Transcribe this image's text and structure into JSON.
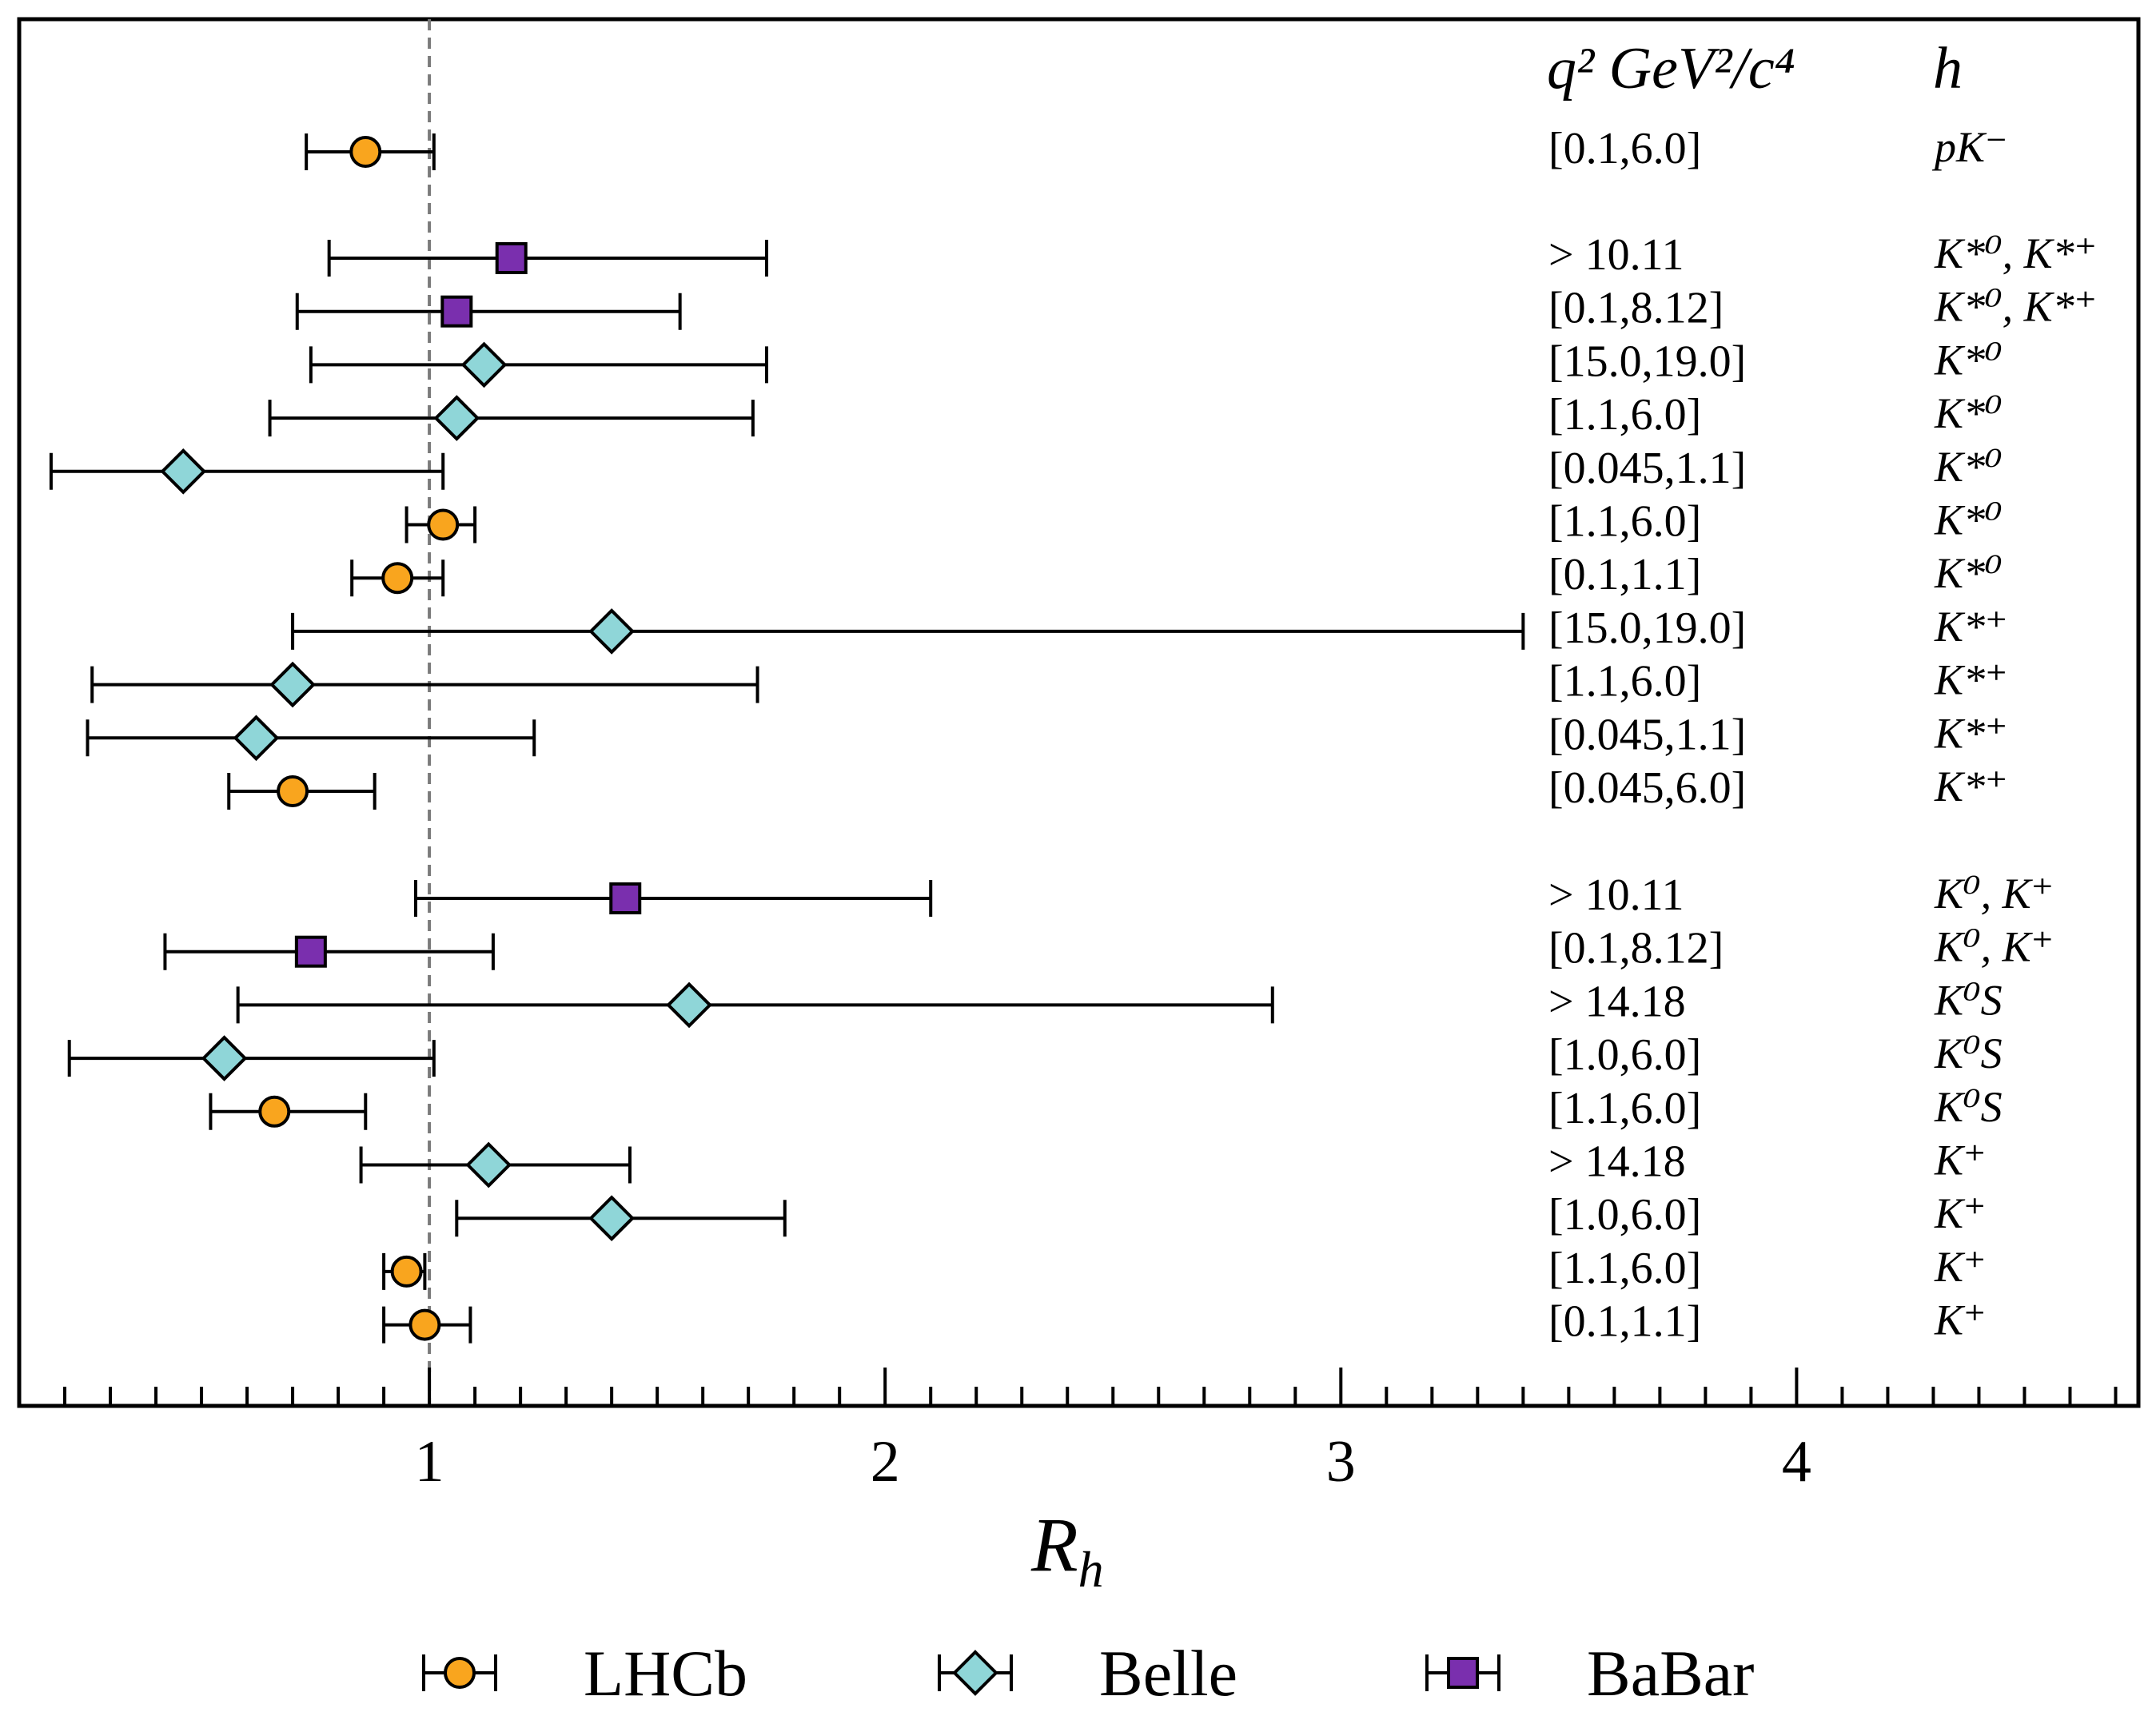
{
  "chart_data": {
    "type": "scatter",
    "title": "",
    "xlabel_main": "R",
    "xlabel_sub": "h",
    "ylabel": "",
    "xlim": [
      0.1,
      4.75
    ],
    "xticks": [
      1,
      2,
      3,
      4
    ],
    "xtick_labels": [
      "1",
      "2",
      "3",
      "4"
    ],
    "minor_tick_step": 0.1,
    "reference_line": 1.0,
    "grid": false,
    "legend_position": "bottom",
    "header": {
      "q2_label": "q² GeV²/c⁴",
      "h_label": "h"
    },
    "series_styles": {
      "LHCb": {
        "marker": "circle",
        "color": "#f9a51e"
      },
      "Belle": {
        "marker": "diamond",
        "color": "#8fd6d8"
      },
      "BaBar": {
        "marker": "square",
        "color": "#7a2fae"
      }
    },
    "legend": [
      "LHCb",
      "Belle",
      "BaBar"
    ],
    "rows": [
      {
        "experiment": "LHCb",
        "value": 0.86,
        "low": 0.73,
        "high": 1.01,
        "q2": "[0.1,6.0]",
        "h": "pK⁻"
      },
      {
        "experiment": "BaBar",
        "value": 1.18,
        "low": 0.78,
        "high": 1.74,
        "q2": "> 10.11",
        "h": "K*⁰, K*⁺"
      },
      {
        "experiment": "BaBar",
        "value": 1.06,
        "low": 0.71,
        "high": 1.55,
        "q2": "[0.1,8.12]",
        "h": "K*⁰, K*⁺"
      },
      {
        "experiment": "Belle",
        "value": 1.12,
        "low": 0.74,
        "high": 1.74,
        "q2": "[15.0,19.0]",
        "h": "K*⁰"
      },
      {
        "experiment": "Belle",
        "value": 1.06,
        "low": 0.65,
        "high": 1.71,
        "q2": "[1.1,6.0]",
        "h": "K*⁰"
      },
      {
        "experiment": "Belle",
        "value": 0.46,
        "low": 0.17,
        "high": 1.03,
        "q2": "[0.045,1.1]",
        "h": "K*⁰"
      },
      {
        "experiment": "LHCb",
        "value": 1.03,
        "low": 0.95,
        "high": 1.1,
        "q2": "[1.1,6.0]",
        "h": "K*⁰"
      },
      {
        "experiment": "LHCb",
        "value": 0.93,
        "low": 0.83,
        "high": 1.03,
        "q2": "[0.1,1.1]",
        "h": "K*⁰"
      },
      {
        "experiment": "Belle",
        "value": 1.4,
        "low": 0.7,
        "high": 3.4,
        "q2": "[15.0,19.0]",
        "h": "K*⁺"
      },
      {
        "experiment": "Belle",
        "value": 0.7,
        "low": 0.26,
        "high": 1.72,
        "q2": "[1.1,6.0]",
        "h": "K*⁺"
      },
      {
        "experiment": "Belle",
        "value": 0.62,
        "low": 0.25,
        "high": 1.23,
        "q2": "[0.045,1.1]",
        "h": "K*⁺"
      },
      {
        "experiment": "LHCb",
        "value": 0.7,
        "low": 0.56,
        "high": 0.88,
        "q2": "[0.045,6.0]",
        "h": "K*⁺"
      },
      {
        "experiment": "BaBar",
        "value": 1.43,
        "low": 0.97,
        "high": 2.1,
        "q2": "> 10.11",
        "h": "K⁰, K⁺"
      },
      {
        "experiment": "BaBar",
        "value": 0.74,
        "low": 0.42,
        "high": 1.14,
        "q2": "[0.1,8.12]",
        "h": "K⁰, K⁺"
      },
      {
        "experiment": "Belle",
        "value": 1.57,
        "low": 0.58,
        "high": 2.85,
        "q2": "> 14.18",
        "h": "K⁰S"
      },
      {
        "experiment": "Belle",
        "value": 0.55,
        "low": 0.21,
        "high": 1.01,
        "q2": "[1.0,6.0]",
        "h": "K⁰S"
      },
      {
        "experiment": "LHCb",
        "value": 0.66,
        "low": 0.52,
        "high": 0.86,
        "q2": "[1.1,6.0]",
        "h": "K⁰S"
      },
      {
        "experiment": "Belle",
        "value": 1.13,
        "low": 0.85,
        "high": 1.44,
        "q2": "> 14.18",
        "h": "K⁺"
      },
      {
        "experiment": "Belle",
        "value": 1.4,
        "low": 1.06,
        "high": 1.78,
        "q2": "[1.0,6.0]",
        "h": "K⁺"
      },
      {
        "experiment": "LHCb",
        "value": 0.95,
        "low": 0.9,
        "high": 0.99,
        "q2": "[1.1,6.0]",
        "h": "K⁺"
      },
      {
        "experiment": "LHCb",
        "value": 0.99,
        "low": 0.9,
        "high": 1.09,
        "q2": "[0.1,1.1]",
        "h": "K⁺"
      }
    ]
  }
}
